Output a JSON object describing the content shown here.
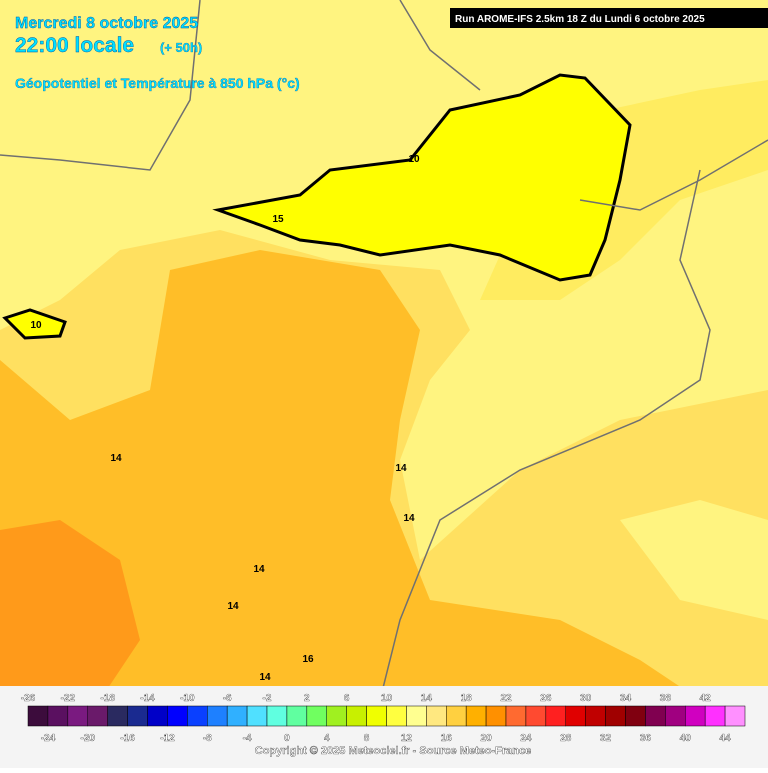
{
  "header": {
    "date": "Mercredi 8 octobre 2025",
    "time": "22:00 locale",
    "lead": "(+ 50h)",
    "parameter": "Géopotentiel et Température à 850 hPa (°c)",
    "run": "Run AROME-IFS 2.5km 18 Z du Lundi 6 octobre 2025"
  },
  "map": {
    "contour_labels": [
      10,
      15,
      10,
      14,
      14,
      14,
      14,
      14,
      16,
      14
    ]
  },
  "legend": {
    "labels_top": [
      -26,
      -22,
      -18,
      -14,
      -10,
      -6,
      -2,
      2,
      6,
      10,
      14,
      18,
      22,
      26,
      30,
      34,
      38,
      42
    ],
    "labels_bottom": [
      -24,
      -20,
      -16,
      -12,
      -8,
      -4,
      0,
      4,
      8,
      12,
      16,
      20,
      24,
      28,
      32,
      36,
      40,
      44
    ],
    "colors": [
      "#3c0c3c",
      "#5a1060",
      "#7a1a80",
      "#6a1a6a",
      "#2a2a60",
      "#1a2a90",
      "#0000c8",
      "#0000ff",
      "#0a40ff",
      "#1e80ff",
      "#30b0ff",
      "#50e0ff",
      "#60ffe0",
      "#60ffa0",
      "#70ff60",
      "#a0f020",
      "#c8f000",
      "#f0ff00",
      "#ffff40",
      "#ffff90",
      "#ffe880",
      "#ffd040",
      "#ffb000",
      "#ff9000",
      "#ff6a30",
      "#ff4a30",
      "#ff2020",
      "#e00000",
      "#c00000",
      "#a00000",
      "#800010",
      "#800050",
      "#a00080",
      "#d000c0",
      "#ff30ff",
      "#ff90ff"
    ]
  },
  "footer": {
    "copyright": "Copyright © 2025 Meteociel.fr - Source Meteo-France"
  }
}
